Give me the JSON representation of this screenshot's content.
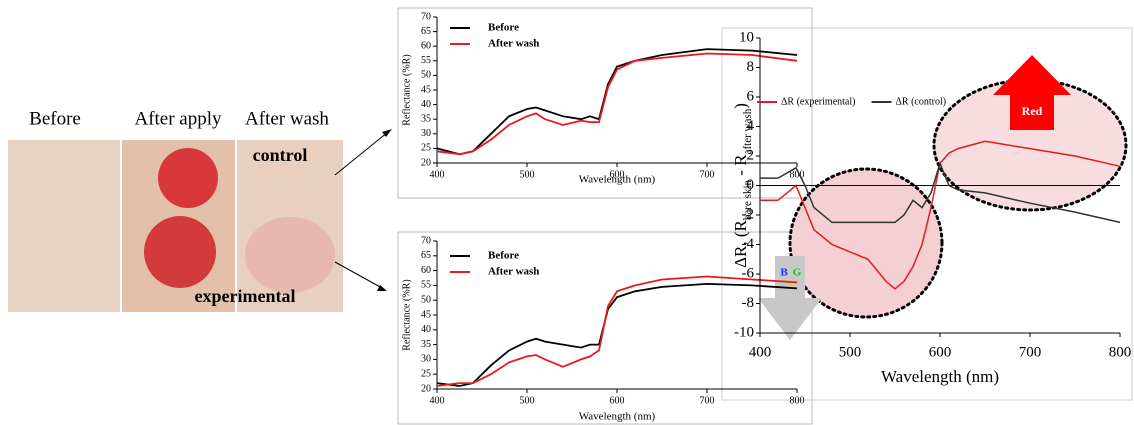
{
  "photo": {
    "labels": [
      "Before",
      "After apply",
      "After wash"
    ],
    "control": "control",
    "experimental": "experimental"
  },
  "chart_data": [
    {
      "type": "line",
      "xlabel": "Wavelength (nm)",
      "ylabel": "Reflectance (%R)",
      "x": [
        400,
        425,
        440,
        460,
        480,
        500,
        510,
        520,
        540,
        560,
        570,
        580,
        590,
        600,
        620,
        650,
        700,
        750,
        800
      ],
      "series": [
        {
          "name": "Before",
          "color": "#000000",
          "values": [
            25,
            23,
            24,
            30,
            36,
            38.5,
            39,
            38,
            36,
            35,
            36,
            35,
            47,
            53,
            55,
            57,
            59,
            58.5,
            57
          ]
        },
        {
          "name": "After wash",
          "color": "#e8191c",
          "values": [
            24,
            23,
            24,
            28,
            33,
            36,
            37,
            35,
            33,
            34.5,
            34,
            34,
            46,
            52,
            55,
            56,
            57.5,
            57,
            55
          ]
        }
      ],
      "xlim": [
        400,
        800
      ],
      "xticks": [
        400,
        500,
        600,
        700,
        800
      ],
      "ylim": [
        20,
        70
      ],
      "yticks": [
        20,
        25,
        30,
        35,
        40,
        45,
        50,
        55,
        60,
        65,
        70
      ],
      "legend": "upper left"
    },
    {
      "type": "line",
      "xlabel": "Wavelength (nm)",
      "ylabel": "Reflectance (%R)",
      "x": [
        400,
        425,
        440,
        460,
        480,
        500,
        510,
        520,
        540,
        560,
        570,
        580,
        590,
        600,
        620,
        650,
        700,
        750,
        800
      ],
      "series": [
        {
          "name": "Before",
          "color": "#000000",
          "values": [
            22,
            21,
            22,
            28,
            33,
            36,
            37,
            36,
            35,
            34,
            35,
            35,
            47,
            51,
            53,
            54.5,
            55.5,
            55,
            54
          ]
        },
        {
          "name": "After wash",
          "color": "#e8191c",
          "values": [
            21,
            22,
            22,
            25,
            29,
            31,
            31.5,
            30,
            27.5,
            30,
            31,
            33,
            48,
            53,
            55,
            57,
            58,
            57,
            56
          ]
        }
      ],
      "xlim": [
        400,
        800
      ],
      "xticks": [
        400,
        500,
        600,
        700,
        800
      ],
      "ylim": [
        20,
        70
      ],
      "yticks": [
        20,
        25,
        30,
        35,
        40,
        45,
        50,
        55,
        60,
        65,
        70
      ],
      "legend": "upper left"
    },
    {
      "type": "line",
      "xlabel": "Wavelength (nm)",
      "ylabel": [
        "ΔR, (R",
        "bare skin",
        " - R",
        "after wash",
        ")"
      ],
      "x": [
        400,
        420,
        440,
        450,
        460,
        480,
        500,
        520,
        540,
        550,
        560,
        570,
        580,
        590,
        600,
        610,
        620,
        650,
        700,
        750,
        800
      ],
      "series": [
        {
          "name": "ΔR (experimental)",
          "color": "#e8191c",
          "values": [
            -1,
            -1,
            0,
            -1.5,
            -3,
            -4,
            -4.5,
            -5,
            -6.5,
            -7,
            -6.5,
            -5.5,
            -4,
            -1.5,
            1.5,
            2.2,
            2.5,
            3,
            2.5,
            2,
            1.3
          ]
        },
        {
          "name": "ΔR (control)",
          "color": "#333333",
          "values": [
            0.5,
            0.5,
            1.2,
            0,
            -1.5,
            -2.5,
            -2.5,
            -2.5,
            -2.5,
            -2.5,
            -2,
            -1,
            -1.5,
            -0.5,
            1.5,
            0,
            -0.3,
            -0.5,
            -1.2,
            -1.8,
            -2.5
          ]
        }
      ],
      "xlim": [
        400,
        800
      ],
      "xticks": [
        400,
        500,
        600,
        700,
        800
      ],
      "ylim": [
        -10,
        10
      ],
      "yticks": [
        -10,
        -8,
        -6,
        -4,
        -2,
        0,
        2,
        4,
        6,
        8,
        10
      ],
      "legend": "upper left",
      "annotations": {
        "red_arrow": "Red",
        "blue": "B",
        "green": "G",
        "yellow": "Y"
      }
    }
  ]
}
